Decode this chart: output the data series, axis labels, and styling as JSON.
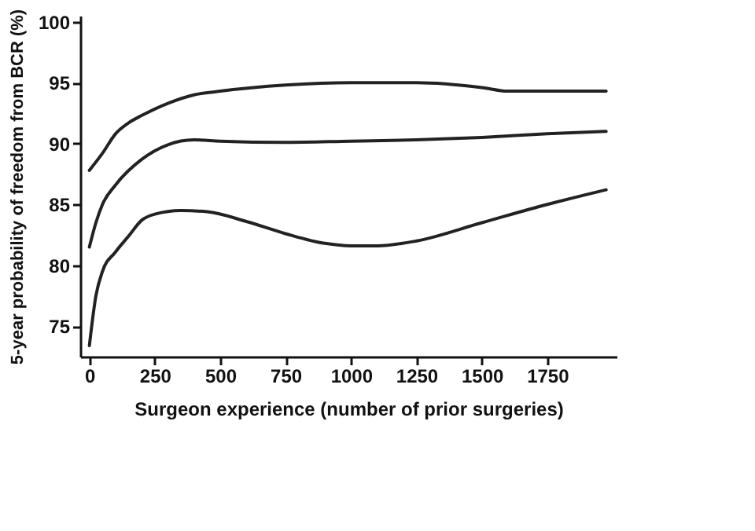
{
  "chart_data": {
    "type": "line",
    "xlabel": "Surgeon experience (number of prior surgeries)",
    "ylabel": "5-year probability of freedom from BCR (%)",
    "xlim": [
      -35,
      2015
    ],
    "ylim": [
      72.5,
      100.5
    ],
    "xticks": [
      0,
      250,
      500,
      750,
      1000,
      1250,
      1500,
      1750
    ],
    "yticks": [
      75,
      80,
      85,
      90,
      95,
      100
    ],
    "grid": false,
    "legend": false,
    "marker": "none",
    "line_style": "solid",
    "series": [
      {
        "color": "#222222",
        "x": [
          0,
          50,
          100,
          150,
          200,
          300,
          400,
          500,
          750,
          1000,
          1250,
          1500,
          1600,
          1750,
          1975
        ],
        "values": [
          87.8,
          89.2,
          90.8,
          91.7,
          92.3,
          93.3,
          94.0,
          94.3,
          94.8,
          95.0,
          95.0,
          94.6,
          94.3,
          94.3,
          94.3
        ]
      },
      {
        "color": "#222222",
        "x": [
          0,
          25,
          50,
          100,
          200,
          300,
          400,
          500,
          750,
          1000,
          1250,
          1500,
          1750,
          1975
        ],
        "values": [
          81.5,
          83.5,
          85.0,
          86.6,
          88.7,
          89.9,
          90.3,
          90.2,
          90.1,
          90.2,
          90.3,
          90.5,
          90.8,
          91.0
        ]
      },
      {
        "color": "#222222",
        "x": [
          0,
          25,
          50,
          100,
          150,
          200,
          250,
          350,
          450,
          600,
          750,
          900,
          1000,
          1100,
          1250,
          1500,
          1750,
          1975
        ],
        "values": [
          73.4,
          77.5,
          79.5,
          81.1,
          82.4,
          83.7,
          84.2,
          84.5,
          84.4,
          83.6,
          82.6,
          81.8,
          81.6,
          81.6,
          82.0,
          83.5,
          85.0,
          86.2
        ]
      }
    ]
  }
}
